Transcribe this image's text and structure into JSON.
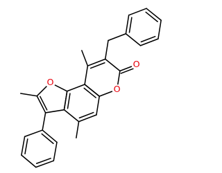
{
  "atoms": [
    "O",
    "O",
    "O"
  ]
}
